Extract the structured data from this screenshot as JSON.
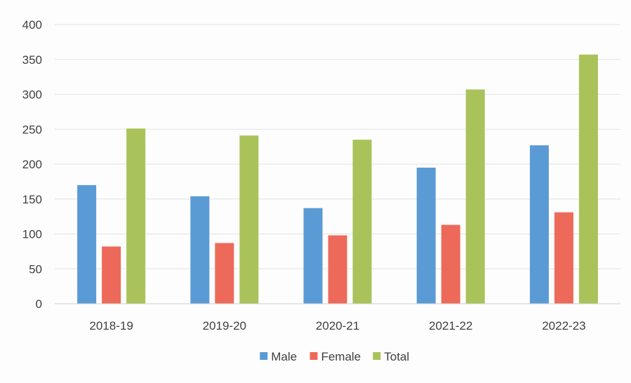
{
  "chart_data": {
    "type": "bar",
    "title": "",
    "xlabel": "",
    "ylabel": "",
    "categories": [
      "2018-19",
      "2019-20",
      "2020-21",
      "2021-22",
      "2022-23"
    ],
    "series": [
      {
        "name": "Male",
        "color": "#5b9bd5",
        "values": [
          170,
          154,
          137,
          195,
          227
        ]
      },
      {
        "name": "Female",
        "color": "#ed6a5a",
        "values": [
          82,
          87,
          98,
          113,
          131
        ]
      },
      {
        "name": "Total",
        "color": "#a9c35a",
        "values": [
          251,
          241,
          235,
          307,
          357
        ]
      }
    ],
    "ylim": [
      0,
      400
    ],
    "yticks": [
      "0",
      "50",
      "100",
      "150",
      "200",
      "250",
      "300",
      "350",
      "400"
    ],
    "grid": true,
    "legend_position": "bottom"
  }
}
